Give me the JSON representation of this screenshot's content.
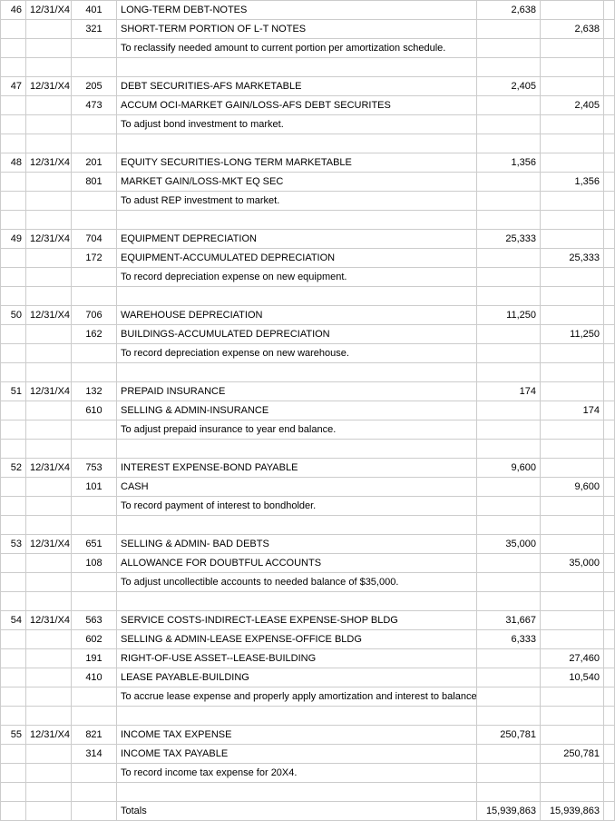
{
  "totals_label": "Totals",
  "totals_debit": "15,939,863",
  "totals_credit": "15,939,863",
  "entries": [
    {
      "entry_no": "46",
      "date": "12/31/X4",
      "lines": [
        {
          "acct": "401",
          "desc": "LONG-TERM DEBT-NOTES",
          "debit": "2,638",
          "credit": ""
        },
        {
          "acct": "321",
          "desc": "SHORT-TERM PORTION OF L-T NOTES",
          "debit": "",
          "credit": "2,638"
        },
        {
          "acct": "",
          "desc": "To reclassify needed amount to current portion per amortization schedule.",
          "debit": "",
          "credit": ""
        }
      ]
    },
    {
      "entry_no": "47",
      "date": "12/31/X4",
      "lines": [
        {
          "acct": "205",
          "desc": "DEBT SECURITIES-AFS MARKETABLE",
          "debit": "2,405",
          "credit": ""
        },
        {
          "acct": "473",
          "desc": "ACCUM OCI-MARKET GAIN/LOSS-AFS DEBT SECURITES",
          "debit": "",
          "credit": "2,405"
        },
        {
          "acct": "",
          "desc": "To adjust bond investment to market.",
          "debit": "",
          "credit": ""
        }
      ]
    },
    {
      "entry_no": "48",
      "date": "12/31/X4",
      "lines": [
        {
          "acct": "201",
          "desc": "EQUITY SECURITIES-LONG TERM MARKETABLE",
          "debit": "1,356",
          "credit": ""
        },
        {
          "acct": "801",
          "desc": "MARKET GAIN/LOSS-MKT EQ SEC",
          "debit": "",
          "credit": "1,356"
        },
        {
          "acct": "",
          "desc": "To adust REP investment to market.",
          "debit": "",
          "credit": ""
        }
      ]
    },
    {
      "entry_no": "49",
      "date": "12/31/X4",
      "lines": [
        {
          "acct": "704",
          "desc": "EQUIPMENT DEPRECIATION",
          "debit": "25,333",
          "credit": ""
        },
        {
          "acct": "172",
          "desc": "EQUIPMENT-ACCUMULATED DEPRECIATION",
          "debit": "",
          "credit": "25,333"
        },
        {
          "acct": "",
          "desc": "To record depreciation expense on new equipment.",
          "debit": "",
          "credit": ""
        }
      ]
    },
    {
      "entry_no": "50",
      "date": "12/31/X4",
      "lines": [
        {
          "acct": "706",
          "desc": "WAREHOUSE DEPRECIATION",
          "debit": "11,250",
          "credit": ""
        },
        {
          "acct": "162",
          "desc": "BUILDINGS-ACCUMULATED DEPRECIATION",
          "debit": "",
          "credit": "11,250"
        },
        {
          "acct": "",
          "desc": "To record depreciation expense on new warehouse.",
          "debit": "",
          "credit": ""
        }
      ]
    },
    {
      "entry_no": "51",
      "date": "12/31/X4",
      "lines": [
        {
          "acct": "132",
          "desc": "PREPAID INSURANCE",
          "debit": "174",
          "credit": ""
        },
        {
          "acct": "610",
          "desc": "SELLING & ADMIN-INSURANCE",
          "debit": "",
          "credit": "174"
        },
        {
          "acct": "",
          "desc": "To adjust prepaid insurance to year end balance.",
          "debit": "",
          "credit": ""
        }
      ]
    },
    {
      "entry_no": "52",
      "date": "12/31/X4",
      "lines": [
        {
          "acct": "753",
          "desc": "INTEREST EXPENSE-BOND PAYABLE",
          "debit": "9,600",
          "credit": ""
        },
        {
          "acct": "101",
          "desc": "CASH",
          "debit": "",
          "credit": "9,600"
        },
        {
          "acct": "",
          "desc": "To record payment of interest to bondholder.",
          "debit": "",
          "credit": ""
        }
      ]
    },
    {
      "entry_no": "53",
      "date": "12/31/X4",
      "lines": [
        {
          "acct": "651",
          "desc": "SELLING & ADMIN- BAD DEBTS",
          "debit": "35,000",
          "credit": ""
        },
        {
          "acct": "108",
          "desc": "ALLOWANCE FOR DOUBTFUL ACCOUNTS",
          "debit": "",
          "credit": "35,000"
        },
        {
          "acct": "",
          "desc": "To adjust uncollectible accounts to needed balance of $35,000.",
          "debit": "",
          "credit": ""
        }
      ]
    },
    {
      "entry_no": "54",
      "date": "12/31/X4",
      "lines": [
        {
          "acct": "563",
          "desc": "SERVICE COSTS-INDIRECT-LEASE EXPENSE-SHOP BLDG",
          "debit": "31,667",
          "credit": ""
        },
        {
          "acct": "602",
          "desc": "SELLING & ADMIN-LEASE EXPENSE-OFFICE BLDG",
          "debit": "6,333",
          "credit": ""
        },
        {
          "acct": "191",
          "desc": "RIGHT-OF-USE ASSET--LEASE-BUILDING",
          "debit": "",
          "credit": "27,460"
        },
        {
          "acct": "410",
          "desc": "LEASE PAYABLE-BUILDING",
          "debit": "",
          "credit": "10,540"
        },
        {
          "acct": "",
          "desc": "To accrue lease expense and properly apply amortization and interest to balance sheet.",
          "debit": "",
          "credit": ""
        }
      ]
    },
    {
      "entry_no": "55",
      "date": "12/31/X4",
      "lines": [
        {
          "acct": "821",
          "desc": "INCOME TAX EXPENSE",
          "debit": "250,781",
          "credit": ""
        },
        {
          "acct": "314",
          "desc": "INCOME TAX PAYABLE",
          "debit": "",
          "credit": "250,781"
        },
        {
          "acct": "",
          "desc": "To record income tax expense for 20X4.",
          "debit": "",
          "credit": ""
        }
      ]
    }
  ]
}
